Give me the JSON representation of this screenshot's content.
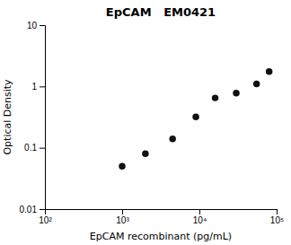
{
  "chart_data": {
    "type": "scatter",
    "title": "EpCAM   EM0421",
    "x_label": "EpCAM recombinant (pg/mL)",
    "y_label": "Optical Density",
    "x": [
      1000,
      2000,
      4500,
      9000,
      16000,
      30000,
      55000,
      80000
    ],
    "values": [
      0.05,
      0.08,
      0.14,
      0.32,
      0.65,
      0.78,
      1.1,
      1.75
    ],
    "color": "#111111",
    "marker": "circle",
    "log": true,
    "xlim": [
      100,
      100000
    ],
    "ylim": [
      0.01,
      10
    ],
    "xticks": [
      {
        "value": 100,
        "label": "10²"
      },
      {
        "value": 1000,
        "label": "10³"
      },
      {
        "value": 10000,
        "label": "10⁴"
      },
      {
        "value": 100000,
        "label": "10⁵"
      }
    ],
    "yticks": [
      0.01,
      0.1,
      1,
      10
    ],
    "grid": false
  }
}
